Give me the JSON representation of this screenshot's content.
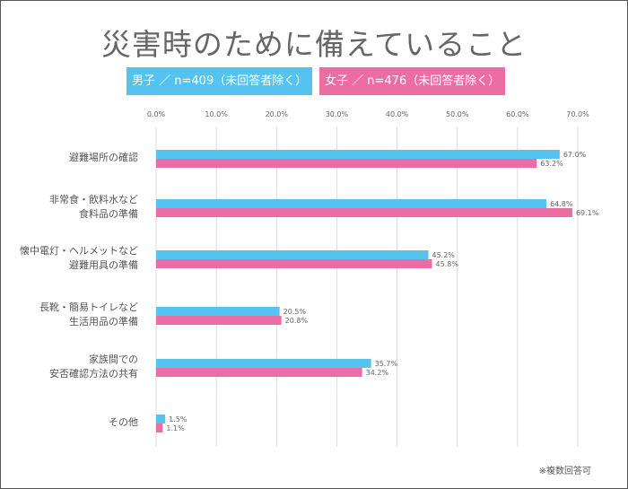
{
  "chart_data": {
    "type": "bar",
    "orientation": "horizontal",
    "title": "災害時のために備えていること",
    "categories": [
      "避難場所の確認",
      "非常食・飲料水など\n食料品の準備",
      "懐中電灯・ヘルメットなど\n避難用具の準備",
      "長靴・簡易トイレなど\n生活用品の準備",
      "家族間での\n安否確認方法の共有",
      "その他"
    ],
    "series": [
      {
        "name": "男子 ／ n=409（未回答者除く）",
        "color": "#55c3f0",
        "values": [
          67.0,
          64.8,
          45.2,
          20.5,
          35.7,
          1.5
        ]
      },
      {
        "name": "女子 ／ n=476（未回答者除く）",
        "color": "#ec6da3",
        "values": [
          63.2,
          69.1,
          45.8,
          20.8,
          34.2,
          1.1
        ]
      }
    ],
    "xlim": [
      0,
      70
    ],
    "ticks": [
      "0.0%",
      "10.0%",
      "20.0%",
      "30.0%",
      "40.0%",
      "50.0%",
      "60.0%",
      "70.0%"
    ],
    "grid": true,
    "legend_placement": "top",
    "note": "※複数回答可"
  }
}
